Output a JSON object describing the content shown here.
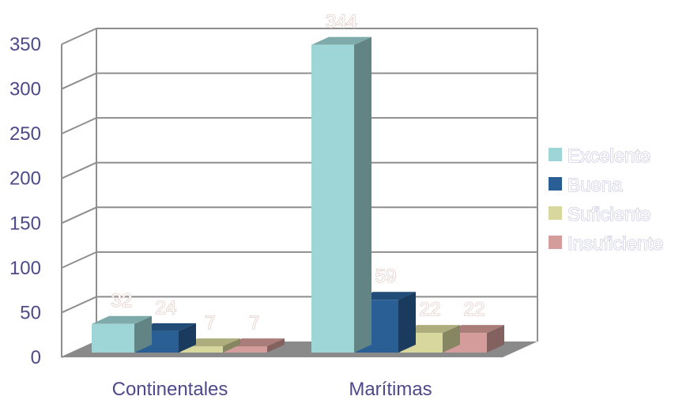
{
  "chart_data": {
    "type": "bar",
    "style": "3d-clustered-column",
    "categories": [
      "Continentales",
      "Marítimas"
    ],
    "series": [
      {
        "name": "Excelente",
        "values": [
          32,
          344
        ],
        "color": "#9ed5d6"
      },
      {
        "name": "Buena",
        "values": [
          24,
          59
        ],
        "color": "#2a5f96"
      },
      {
        "name": "Suficiente",
        "values": [
          7,
          22
        ],
        "color": "#d8d89e"
      },
      {
        "name": "Insuficiente",
        "values": [
          7,
          22
        ],
        "color": "#d49c9a"
      }
    ],
    "y_ticks": [
      "0",
      "50",
      "100",
      "150",
      "200",
      "250",
      "300",
      "350"
    ],
    "ylim": [
      0,
      350
    ],
    "grid": true,
    "legend_position": "right",
    "data_labels": true,
    "colors": {
      "axis_text": "#4d4a8a",
      "gridline": "#8e8e8e",
      "floor": "#8a8a8a",
      "data_label_outline": "#d8b8b0",
      "legend_outline": "#b8b6d8"
    }
  }
}
